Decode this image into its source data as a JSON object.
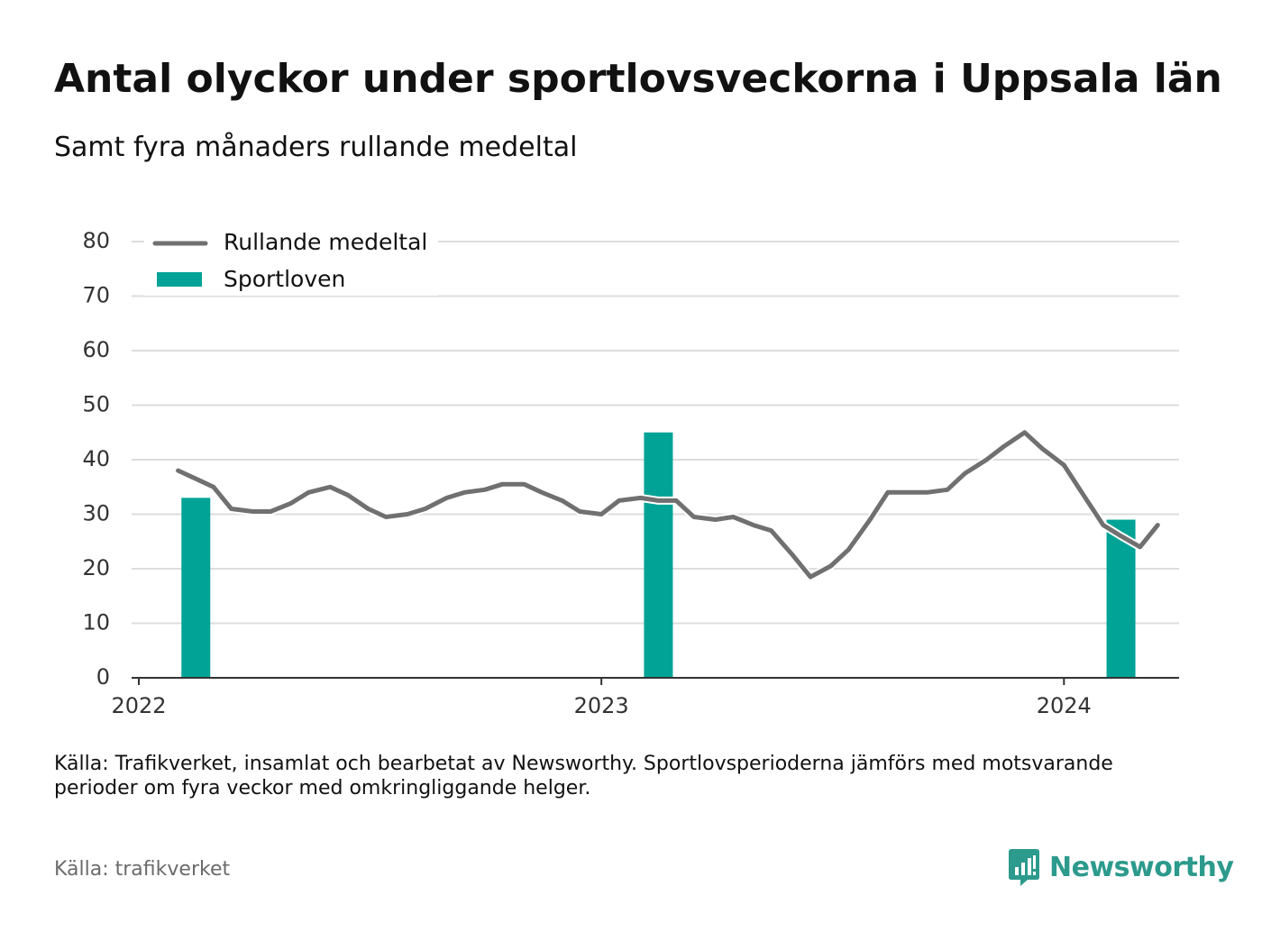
{
  "title": "Antal olyckor under sportlovsveckorna i Uppsala län",
  "subtitle": "Samt fyra månaders rullande medeltal",
  "note": "Källa: Trafikverket, insamlat och bearbetat av Newsworthy. Sportlovsperioderna jämförs med motsvarande perioder om fyra veckor med omkringliggande helger.",
  "source": "Källa: trafikverket",
  "brand": "Newsworthy",
  "colors": {
    "line": "#707070",
    "bar": "#00a396",
    "grid": "#dddddd",
    "axis": "#333333",
    "brand": "#2c9a8c"
  },
  "chart_data": {
    "type": "bar+line",
    "ylim": [
      0,
      80
    ],
    "yticks": [
      0,
      10,
      20,
      30,
      40,
      50,
      60,
      70,
      80
    ],
    "xticks": [
      "2022",
      "2023",
      "2024"
    ],
    "grid": true,
    "legend_position": "top-left",
    "legend": [
      {
        "name": "Rullande medeltal",
        "kind": "line"
      },
      {
        "name": "Sportloven",
        "kind": "bar"
      }
    ],
    "bars": {
      "name": "Sportloven",
      "points": [
        {
          "date": "2022-02-15",
          "value": 33
        },
        {
          "date": "2023-02-15",
          "value": 45
        },
        {
          "date": "2024-02-15",
          "value": 29
        }
      ]
    },
    "line": {
      "name": "Rullande medeltal",
      "points": [
        [
          "2022-02-01",
          38
        ],
        [
          "2022-02-15",
          36.5
        ],
        [
          "2022-03-01",
          35
        ],
        [
          "2022-03-15",
          31
        ],
        [
          "2022-04-01",
          30.5
        ],
        [
          "2022-04-15",
          30.5
        ],
        [
          "2022-05-01",
          32
        ],
        [
          "2022-05-15",
          34
        ],
        [
          "2022-06-01",
          35
        ],
        [
          "2022-06-15",
          33.5
        ],
        [
          "2022-07-01",
          31
        ],
        [
          "2022-07-15",
          29.5
        ],
        [
          "2022-08-01",
          30
        ],
        [
          "2022-08-15",
          31
        ],
        [
          "2022-09-01",
          33
        ],
        [
          "2022-09-15",
          34
        ],
        [
          "2022-10-01",
          34.5
        ],
        [
          "2022-10-15",
          35.5
        ],
        [
          "2022-11-01",
          35.5
        ],
        [
          "2022-11-15",
          34
        ],
        [
          "2022-12-01",
          32.5
        ],
        [
          "2022-12-15",
          30.5
        ],
        [
          "2023-01-01",
          30
        ],
        [
          "2023-01-15",
          32.5
        ],
        [
          "2023-02-01",
          33
        ],
        [
          "2023-02-15",
          32.5
        ],
        [
          "2023-03-01",
          32.5
        ],
        [
          "2023-03-15",
          29.5
        ],
        [
          "2023-04-01",
          29
        ],
        [
          "2023-04-15",
          29.5
        ],
        [
          "2023-05-01",
          28
        ],
        [
          "2023-05-15",
          27
        ],
        [
          "2023-06-01",
          22.5
        ],
        [
          "2023-06-15",
          18.5
        ],
        [
          "2023-07-01",
          20.5
        ],
        [
          "2023-07-15",
          23.5
        ],
        [
          "2023-08-01",
          29
        ],
        [
          "2023-08-15",
          34
        ],
        [
          "2023-09-01",
          34
        ],
        [
          "2023-09-15",
          34
        ],
        [
          "2023-10-01",
          34.5
        ],
        [
          "2023-10-15",
          37.5
        ],
        [
          "2023-11-01",
          40
        ],
        [
          "2023-11-15",
          42.5
        ],
        [
          "2023-12-01",
          45
        ],
        [
          "2023-12-15",
          42
        ],
        [
          "2024-01-01",
          39
        ],
        [
          "2024-01-15",
          34
        ],
        [
          "2024-02-01",
          28
        ],
        [
          "2024-02-15",
          26
        ],
        [
          "2024-03-01",
          24
        ],
        [
          "2024-03-15",
          28
        ]
      ]
    }
  }
}
